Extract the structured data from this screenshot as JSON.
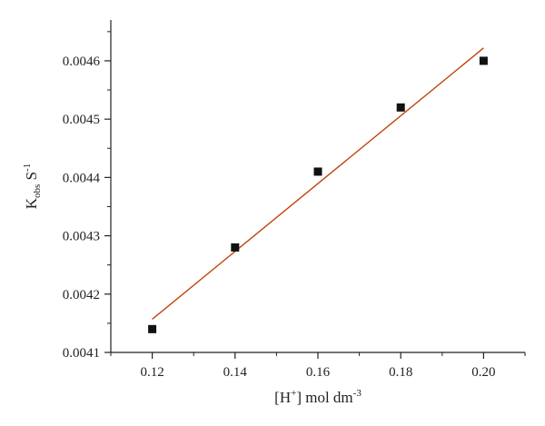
{
  "chart_data": {
    "type": "scatter",
    "title": "",
    "xlabel": {
      "pre": "[H",
      "sup": "+",
      "post": "] mol dm",
      "unit_sup": "-3"
    },
    "ylabel": {
      "main": "K",
      "sub": "obs",
      "post": " S",
      "sup": "-1"
    },
    "xlim": [
      0.11,
      0.21
    ],
    "ylim": [
      0.0041,
      0.00467
    ],
    "x_ticks": [
      0.12,
      0.14,
      0.16,
      0.18,
      0.2
    ],
    "x_tick_labels": [
      "0.12",
      "0.14",
      "0.16",
      "0.18",
      "0.20"
    ],
    "y_ticks": [
      0.0041,
      0.0042,
      0.0043,
      0.0044,
      0.0045,
      0.0046
    ],
    "y_tick_labels": [
      "0.0041",
      "0.0042",
      "0.0043",
      "0.0044",
      "0.0045",
      "0.0046"
    ],
    "series": [
      {
        "x": [
          0.12,
          0.14,
          0.16,
          0.18,
          0.2
        ],
        "y": [
          0.00414,
          0.00428,
          0.00441,
          0.00452,
          0.0046
        ],
        "marker": "square",
        "color": "#111111"
      }
    ],
    "fit_line": {
      "x": [
        0.12,
        0.2
      ],
      "y": [
        0.004157,
        0.004622
      ],
      "color": "#c1440e"
    },
    "grid": false,
    "legend": "none"
  }
}
